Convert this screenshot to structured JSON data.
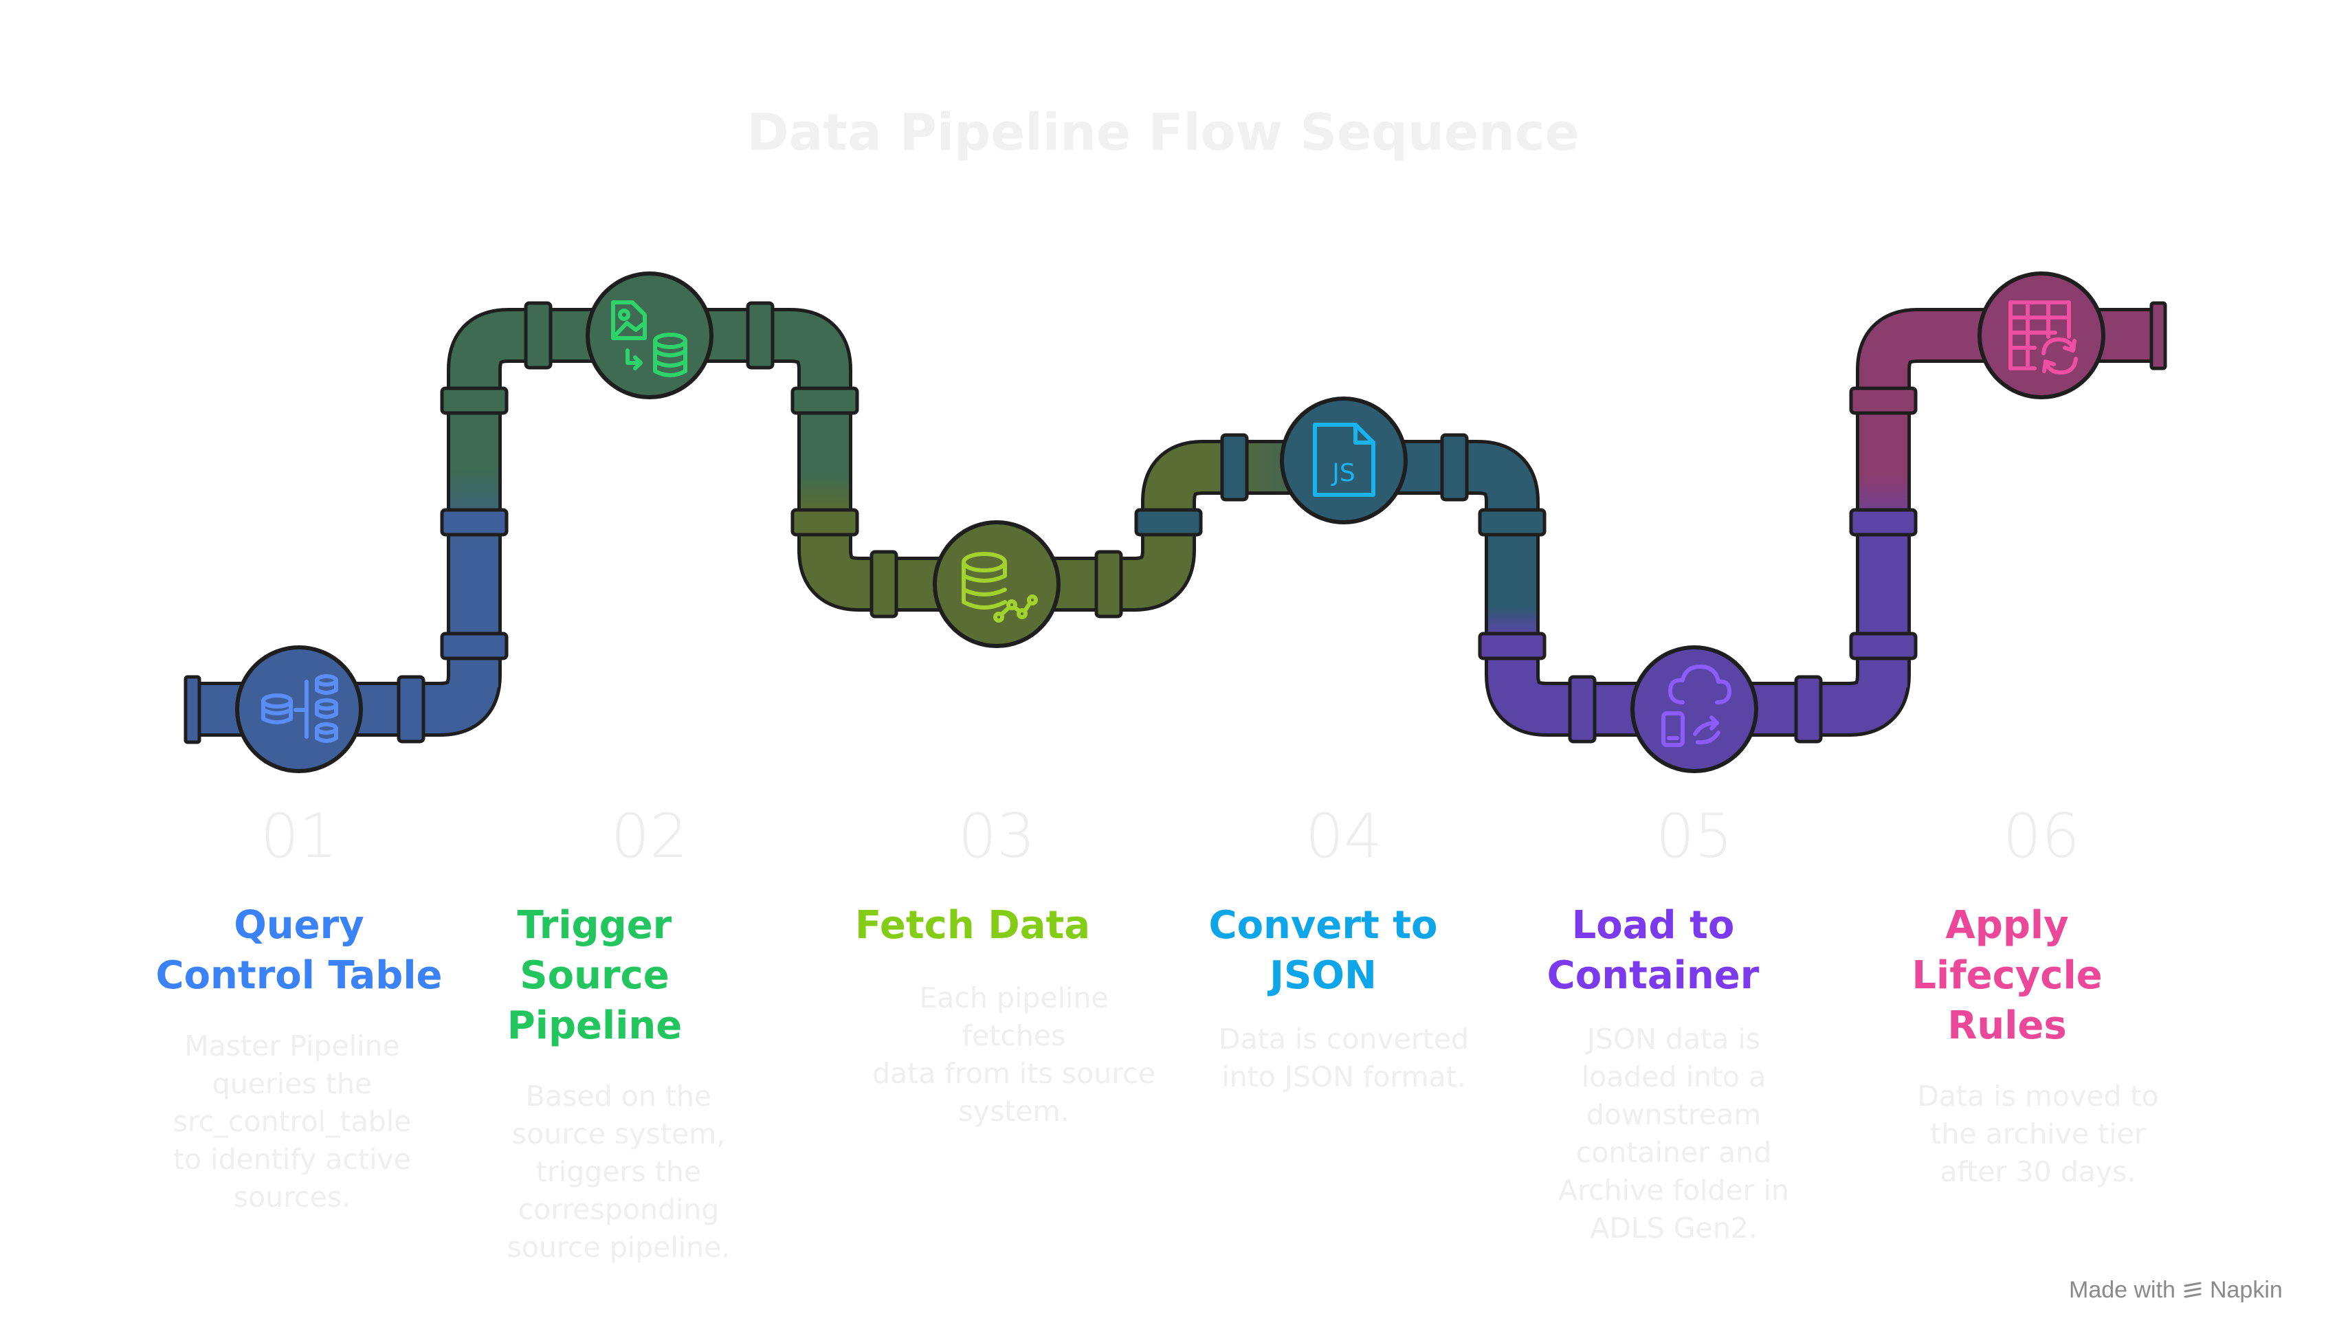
{
  "title": "Data Pipeline Flow Sequence",
  "steps": [
    {
      "number": "01",
      "title": "Query\nControl Table",
      "description": "Master Pipeline\nqueries the\nsrc_control_table\nto identify active\nsources.",
      "color": "#3b82f6",
      "pipe_color": "#3e5f99",
      "icon": "database-hierarchy-icon"
    },
    {
      "number": "02",
      "title": "Trigger\nSource\nPipeline",
      "description": "Based on the\nsource system,\ntriggers the\ncorresponding\nsource pipeline.",
      "color": "#22c55e",
      "pipe_color": "#3e6b52",
      "icon": "image-to-database-icon"
    },
    {
      "number": "03",
      "title": "Fetch Data",
      "description": "Each pipeline fetches\ndata from its source\nsystem.",
      "color": "#84cc16",
      "pipe_color": "#5a6d34",
      "icon": "database-analytics-icon"
    },
    {
      "number": "04",
      "title": "Convert to\nJSON",
      "description": "Data is converted\ninto JSON format.",
      "color": "#0ea5e9",
      "pipe_color": "#2d5b70",
      "icon": "js-file-icon"
    },
    {
      "number": "05",
      "title": "Load to\nContainer",
      "description": "JSON data is\nloaded into a\ndownstream\ncontainer and\nArchive folder in\nADLS Gen2.",
      "color": "#7c3aed",
      "pipe_color": "#5a44a6",
      "icon": "cloud-sync-icon"
    },
    {
      "number": "06",
      "title": "Apply\nLifecycle\nRules",
      "description": "Data is moved to\nthe archive tier\nafter 30 days.",
      "color": "#ec4899",
      "pipe_color": "#8b3d6e",
      "icon": "table-refresh-icon"
    }
  ],
  "footer": {
    "made_with": "Made with",
    "brand": "Napkin"
  }
}
